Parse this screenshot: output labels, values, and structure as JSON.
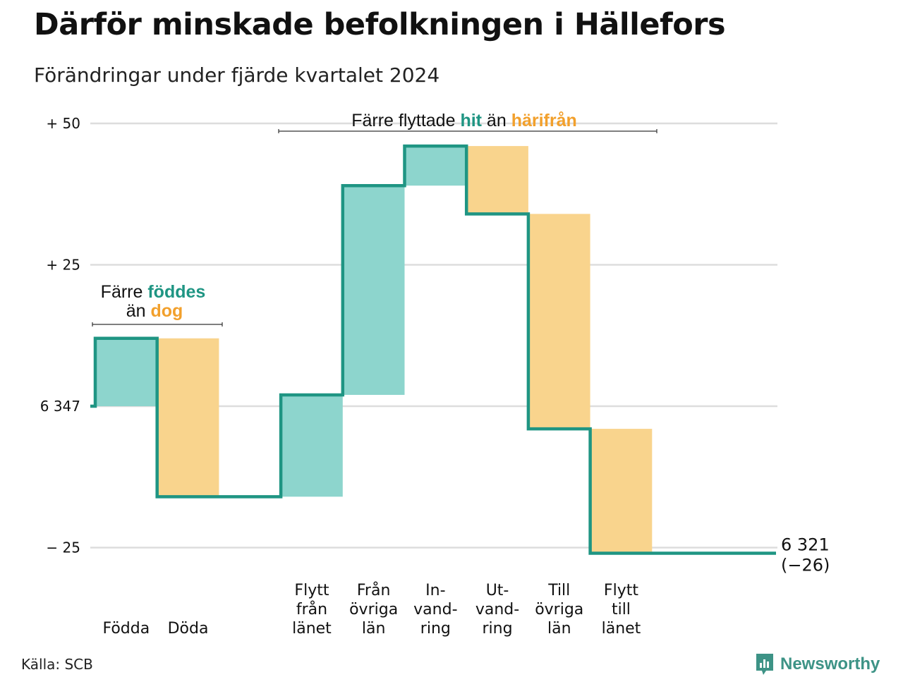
{
  "title": "Därför minskade befolkningen i Hällefors",
  "subtitle": "Förändringar under fjärde kvartalet 2024",
  "source": "Källa: SCB",
  "brand": "Newsworthy",
  "colors": {
    "inflow": "#8dd5cd",
    "outflow": "#f9d48d",
    "line": "#1f9583",
    "inflow_text": "#1f9583",
    "outflow_text": "#f2a02c",
    "grid": "#dddddd"
  },
  "annotations": {
    "births": {
      "line1_prefix": "Färre",
      "line1_highlight": "föddes",
      "line2_prefix": "än",
      "line2_highlight": "dog"
    },
    "migration": {
      "prefix": "Färre flyttade",
      "highlight1": "hit",
      "middle": "än",
      "highlight2": "härifrån"
    }
  },
  "end_label": {
    "value": "6 321",
    "change": "(−26)"
  },
  "chart_data": {
    "type": "waterfall",
    "start_value": 6347,
    "start_label": "6 347",
    "y_range": [
      -25,
      50
    ],
    "y_ticks": [
      {
        "value": 50,
        "label": "+ 50"
      },
      {
        "value": 25,
        "label": "+ 25"
      },
      {
        "value": 0,
        "label": "6 347"
      },
      {
        "value": -25,
        "label": "− 25"
      }
    ],
    "grid": true,
    "steps": [
      {
        "category": [
          "Födda"
        ],
        "value": 12
      },
      {
        "category": [
          "Döda"
        ],
        "value": -28
      },
      {
        "category": [],
        "value": 0
      },
      {
        "category": [
          "Flytt",
          "från",
          "länet"
        ],
        "value": 18
      },
      {
        "category": [
          "Från",
          "övriga",
          "län"
        ],
        "value": 37
      },
      {
        "category": [
          "In-",
          "vand-",
          "ring"
        ],
        "value": 7
      },
      {
        "category": [
          "Ut-",
          "vand-",
          "ring"
        ],
        "value": -12
      },
      {
        "category": [
          "Till",
          "övriga",
          "län"
        ],
        "value": -38
      },
      {
        "category": [
          "Flytt",
          "till",
          "länet"
        ],
        "value": -22
      }
    ],
    "end_value": 6321,
    "net_change": -26
  }
}
